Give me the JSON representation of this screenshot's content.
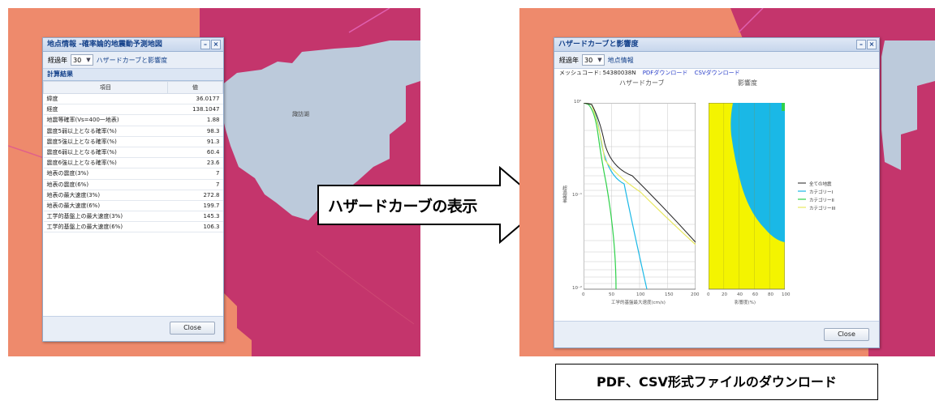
{
  "left_window": {
    "title": "地点情報 -確率論的地震動予測地図",
    "toolbar": {
      "label": "経過年",
      "year_value": "30",
      "link": "ハザードカーブと影響度"
    },
    "panel_title": "計算結果",
    "table": {
      "headers": [
        "項目",
        "値"
      ],
      "rows": [
        {
          "item": "緯度",
          "value": "36.0177"
        },
        {
          "item": "経度",
          "value": "138.1047"
        },
        {
          "item": "地震等確率(Vs=400一地表)",
          "value": "1.88"
        },
        {
          "item": "震度5弱以上となる確率(%)",
          "value": "98.3"
        },
        {
          "item": "震度5強以上となる確率(%)",
          "value": "91.3"
        },
        {
          "item": "震度6弱以上となる確率(%)",
          "value": "60.4"
        },
        {
          "item": "震度6強以上となる確率(%)",
          "value": "23.6"
        },
        {
          "item": "地表の震度(3%)",
          "value": "7"
        },
        {
          "item": "地表の震度(6%)",
          "value": "7"
        },
        {
          "item": "地表の最大速度(3%)",
          "value": "272.8"
        },
        {
          "item": "地表の最大速度(6%)",
          "value": "199.7"
        },
        {
          "item": "工学的基盤上の最大速度(3%)",
          "value": "145.3"
        },
        {
          "item": "工学的基盤上の最大速度(6%)",
          "value": "106.3"
        }
      ]
    },
    "close_label": "Close"
  },
  "map_left_label": "諏訪湖",
  "arrow_label": "ハザードカーブの表示",
  "right_window": {
    "title": "ハザードカーブと影響度",
    "toolbar": {
      "label": "経過年",
      "year_value": "30",
      "link": "地点情報"
    },
    "mesh_code": "メッシュコード: 54380038N",
    "pdf_link": "PDFダウンロード",
    "csv_link": "CSVダウンロード",
    "plot1_title": "ハザードカーブ",
    "plot2_title": "影響度",
    "plot1_ylabel": "超過確率",
    "plot1_xlabel": "工学的基盤最大速度(cm/s)",
    "plot2_xlabel": "影響度(%)",
    "plot1_yticks": [
      "10⁰",
      "10⁻¹",
      "10⁻²"
    ],
    "plot1_xticks": [
      "0",
      "50",
      "100",
      "150",
      "200"
    ],
    "plot2_xticks": [
      "0",
      "20",
      "40",
      "60",
      "80",
      "100"
    ],
    "legend": [
      "全ての地震",
      "カテゴリーI",
      "カテゴリーII",
      "カテゴリーIII"
    ],
    "close_label": "Close"
  },
  "caption": "PDF、CSV形式ファイルのダウンロード",
  "icons": {
    "minimize": "minimize-icon",
    "close": "close-icon",
    "dropdown": "chevron-down-icon"
  },
  "colors": {
    "map_orange": "#ee8a6c",
    "map_crimson": "#c4356c",
    "lake_blue": "#bccadb",
    "category_yellow": "#f4f400",
    "category_cyan": "#1ab8e6",
    "category_green": "#2fd14a"
  }
}
